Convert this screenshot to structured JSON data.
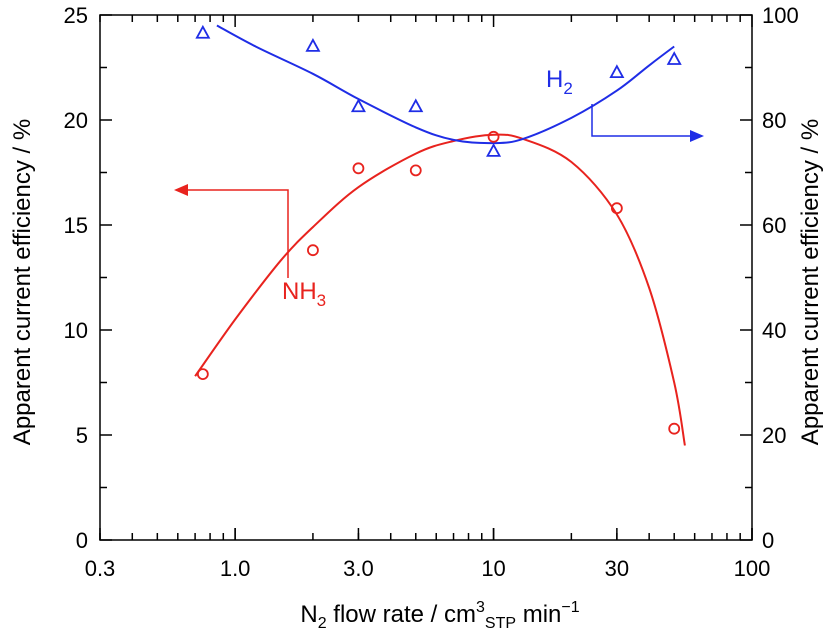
{
  "chart_data": {
    "type": "scatter",
    "x_axis": {
      "scale": "log",
      "range": [
        0.3,
        100
      ],
      "tick_labels": [
        "0.3",
        "1.0",
        "3.0",
        "10",
        "30",
        "100"
      ],
      "tick_values": [
        0.3,
        1.0,
        3.0,
        10,
        30,
        100
      ],
      "label_main": "N",
      "label_sub": "2",
      "label_mid": " flow rate / cm",
      "label_sup": "3",
      "label_sub2": "STP",
      "label_end": " min",
      "label_sup2": "−1"
    },
    "y_left": {
      "range": [
        0,
        25
      ],
      "tick_labels": [
        "0",
        "5",
        "10",
        "15",
        "20",
        "25"
      ],
      "tick_values": [
        0,
        5,
        10,
        15,
        20,
        25
      ],
      "label": "Apparent current efficiency / %"
    },
    "y_right": {
      "range": [
        0,
        100
      ],
      "tick_labels": [
        "0",
        "20",
        "40",
        "60",
        "80",
        "100"
      ],
      "tick_values": [
        0,
        20,
        40,
        60,
        80,
        100
      ],
      "label": "Apparent current efficiency / %"
    },
    "grid": false,
    "series": [
      {
        "name_main": "NH",
        "name_sub": "3",
        "axis": "left",
        "marker": "circle",
        "color": "#e8231e",
        "points": [
          [
            0.75,
            7.9
          ],
          [
            2.0,
            13.8
          ],
          [
            3.0,
            17.7
          ],
          [
            5.0,
            17.6
          ],
          [
            10,
            19.2
          ],
          [
            30,
            15.8
          ],
          [
            50,
            5.3
          ]
        ],
        "fit_curve": [
          [
            0.7,
            7.8
          ],
          [
            1.0,
            10.5
          ],
          [
            1.5,
            13.3
          ],
          [
            2.0,
            14.9
          ],
          [
            3.0,
            16.8
          ],
          [
            5.0,
            18.4
          ],
          [
            7.0,
            19.0
          ],
          [
            10,
            19.3
          ],
          [
            13,
            19.1
          ],
          [
            20,
            18.0
          ],
          [
            30,
            15.5
          ],
          [
            40,
            12.0
          ],
          [
            50,
            7.5
          ],
          [
            55,
            4.5
          ]
        ]
      },
      {
        "name_main": "H",
        "name_sub": "2",
        "axis": "right",
        "marker": "triangle",
        "color": "#1f2de6",
        "points": [
          [
            0.75,
            96.5
          ],
          [
            2.0,
            94
          ],
          [
            3.0,
            82.5
          ],
          [
            5.0,
            82.5
          ],
          [
            10,
            74
          ],
          [
            30,
            89
          ],
          [
            50,
            91.5
          ]
        ],
        "fit_curve": [
          [
            0.85,
            98
          ],
          [
            1.2,
            94
          ],
          [
            2.0,
            88.8
          ],
          [
            3.0,
            84
          ],
          [
            5.0,
            78.6
          ],
          [
            7.0,
            76.2
          ],
          [
            10,
            75.6
          ],
          [
            13,
            76.4
          ],
          [
            20,
            80.4
          ],
          [
            30,
            85.6
          ],
          [
            40,
            90.4
          ],
          [
            50,
            94
          ]
        ]
      }
    ]
  }
}
